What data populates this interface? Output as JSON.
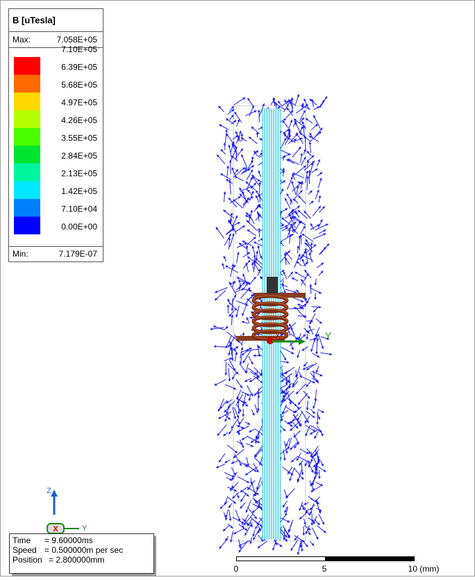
{
  "legend": {
    "title": "B [uTesla]",
    "max_label": "Max:",
    "max_value": "7.058E+05",
    "min_label": "Min:",
    "min_value": "7.179E-07",
    "labels": [
      "7.10E+05",
      "6.39E+05",
      "5.68E+05",
      "4.97E+05",
      "4.26E+05",
      "3.55E+05",
      "2.84E+05",
      "2.13E+05",
      "1.42E+05",
      "7.10E+04",
      "0.00E+00"
    ],
    "colors": [
      "#ff0000",
      "#ff6a00",
      "#ffd800",
      "#b6ff00",
      "#4cff00",
      "#00e62e",
      "#00f5a0",
      "#00e8ff",
      "#0080ff",
      "#0000ff"
    ]
  },
  "view_axes": {
    "y": "Y",
    "x": "X"
  },
  "triad": {
    "z": "Z",
    "y": "Y",
    "x": "X"
  },
  "status": [
    [
      "Time",
      "= 9.60000ms"
    ],
    [
      "Speed",
      "= 0.500000m  per  sec"
    ],
    [
      "Position",
      "= 2.800000mm"
    ]
  ],
  "scale_bar": {
    "labels": [
      "0",
      "5",
      "10 (mm)"
    ]
  }
}
